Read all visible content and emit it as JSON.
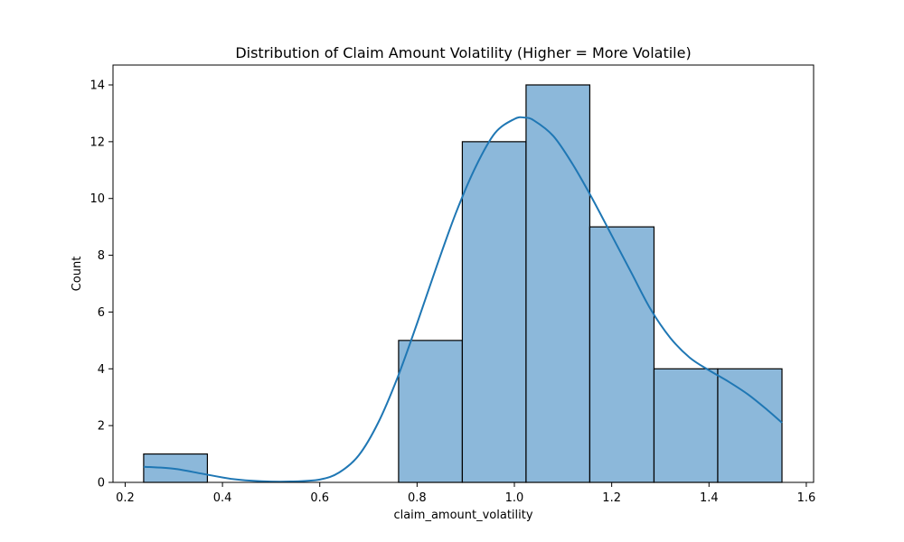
{
  "chart_data": {
    "type": "bar",
    "subtype": "histogram_with_kde",
    "title": "Distribution of Claim Amount Volatility (Higher = More Volatile)",
    "xlabel": "claim_amount_volatility",
    "ylabel": "Count",
    "xlim": [
      0.175,
      1.615
    ],
    "ylim": [
      0,
      14.7
    ],
    "xticks": [
      0.2,
      0.4,
      0.6,
      0.8,
      1.0,
      1.2,
      1.4,
      1.6
    ],
    "xtick_labels": [
      "0.2",
      "0.4",
      "0.6",
      "0.8",
      "1.0",
      "1.2",
      "1.4",
      "1.6"
    ],
    "yticks": [
      0,
      2,
      4,
      6,
      8,
      10,
      12,
      14
    ],
    "ytick_labels": [
      "0",
      "2",
      "4",
      "6",
      "8",
      "10",
      "12",
      "14"
    ],
    "grid": false,
    "bins": [
      {
        "x0": 0.238,
        "x1": 0.369,
        "count": 1
      },
      {
        "x0": 0.369,
        "x1": 0.5,
        "count": 0
      },
      {
        "x0": 0.5,
        "x1": 0.631,
        "count": 0
      },
      {
        "x0": 0.631,
        "x1": 0.762,
        "count": 0
      },
      {
        "x0": 0.762,
        "x1": 0.893,
        "count": 5
      },
      {
        "x0": 0.893,
        "x1": 1.024,
        "count": 12
      },
      {
        "x0": 1.024,
        "x1": 1.155,
        "count": 14
      },
      {
        "x0": 1.155,
        "x1": 1.287,
        "count": 9
      },
      {
        "x0": 1.287,
        "x1": 1.418,
        "count": 4
      },
      {
        "x0": 1.418,
        "x1": 1.55,
        "count": 4
      }
    ],
    "kde": {
      "x": [
        0.238,
        0.3,
        0.36,
        0.42,
        0.48,
        0.54,
        0.6,
        0.64,
        0.68,
        0.72,
        0.76,
        0.8,
        0.84,
        0.88,
        0.92,
        0.96,
        1.0,
        1.02,
        1.04,
        1.08,
        1.12,
        1.16,
        1.2,
        1.24,
        1.28,
        1.32,
        1.36,
        1.4,
        1.44,
        1.48,
        1.52,
        1.55
      ],
      "y": [
        0.55,
        0.48,
        0.3,
        0.12,
        0.04,
        0.03,
        0.1,
        0.35,
        0.95,
        2.1,
        3.7,
        5.6,
        7.6,
        9.5,
        11.1,
        12.3,
        12.8,
        12.85,
        12.75,
        12.2,
        11.2,
        10.0,
        8.7,
        7.4,
        6.1,
        5.1,
        4.4,
        3.95,
        3.55,
        3.1,
        2.55,
        2.1
      ]
    },
    "colors": {
      "bar_fill": "#8cb8da",
      "bar_edge": "#000000",
      "kde_line": "#1f77b4"
    }
  }
}
